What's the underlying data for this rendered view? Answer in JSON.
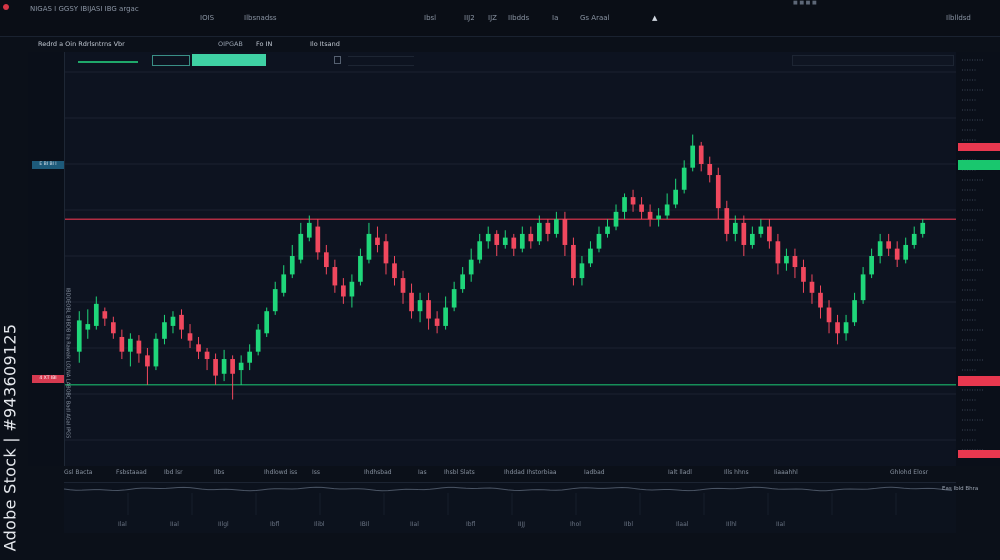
{
  "topbar": {
    "items": [
      "NIGAS I GGSY IBIJASI IBG argac",
      "IOIS",
      "Ilbsnadss",
      "Ibsl",
      "IIJ2",
      "IJZ",
      "IIbdds",
      "Ia",
      "Gs Araal",
      "Ilblldsd"
    ]
  },
  "toolbar": {
    "left_label": "Redrd a Oin  Rdrlsntrns  Vbr",
    "mid_label": "OIPGAB",
    "mid_label2": "Fo  IN",
    "right_label": "Ilo Itsand"
  },
  "watermark": {
    "text": "Adobe Stock | #943609125",
    "side_text": "IBDDEOBL BIIBDB  lla  Rawalk LOLNA LABOBC Badl  AGaI  IPGS"
  },
  "price_markers": {
    "upper_left": "E BI BI I",
    "lower_left": "4 XT IBI"
  },
  "x_axis_labels": [
    "Gsl Bacta",
    "Fsbstaaad",
    "Ibd lsr",
    "Ilbs",
    "Ihdlowd iss",
    "Iss",
    "Ihdhsbad",
    "Ias",
    "Ihsbl Slats",
    "Ihddad Ihstorbiaa",
    "Iadbad",
    "Ialt lladl",
    "Ills hhns",
    "Iiaaahhl",
    "Ghlohd Elosr"
  ],
  "bottom_labels": [
    "Ilal",
    "IIal",
    "IIlgl",
    "Ibfl",
    "Ilibl",
    "IBIl",
    "IIal",
    "Ibfl",
    "IIJJ",
    "Ihol",
    "IIbl",
    "Ilaal",
    "IIlhl",
    "IIal"
  ],
  "bottom_right_label": "Eas Ibld Bhra",
  "colors": {
    "up": "#1fd67a",
    "down": "#f0485e",
    "hline_red": "#e8384f",
    "hline_green": "#19b86a",
    "accent_teal": "#3fd1a4"
  },
  "chart_data": {
    "type": "candlestick",
    "candles": [
      [
        48,
        65,
        42,
        70
      ],
      [
        60,
        63,
        55,
        71
      ],
      [
        62,
        74,
        60,
        78
      ],
      [
        70,
        66,
        62,
        72
      ],
      [
        64,
        58,
        55,
        67
      ],
      [
        56,
        48,
        44,
        60
      ],
      [
        48,
        55,
        40,
        58
      ],
      [
        54,
        47,
        42,
        57
      ],
      [
        46,
        40,
        30,
        50
      ],
      [
        40,
        55,
        38,
        58
      ],
      [
        55,
        64,
        52,
        68
      ],
      [
        62,
        67,
        58,
        70
      ],
      [
        68,
        60,
        55,
        71
      ],
      [
        58,
        54,
        50,
        63
      ],
      [
        52,
        48,
        44,
        56
      ],
      [
        48,
        44,
        38,
        50
      ],
      [
        44,
        35,
        30,
        47
      ],
      [
        36,
        44,
        32,
        49
      ],
      [
        44,
        36,
        22,
        46
      ],
      [
        38,
        42,
        30,
        46
      ],
      [
        42,
        48,
        38,
        52
      ],
      [
        48,
        60,
        46,
        63
      ],
      [
        58,
        70,
        56,
        72
      ],
      [
        70,
        82,
        68,
        86
      ],
      [
        80,
        90,
        78,
        95
      ],
      [
        90,
        100,
        88,
        106
      ],
      [
        98,
        112,
        96,
        118
      ],
      [
        110,
        118,
        108,
        122
      ],
      [
        116,
        102,
        98,
        120
      ],
      [
        102,
        94,
        90,
        106
      ],
      [
        94,
        84,
        80,
        98
      ],
      [
        84,
        78,
        74,
        88
      ],
      [
        78,
        86,
        72,
        90
      ],
      [
        86,
        100,
        84,
        104
      ],
      [
        98,
        112,
        96,
        118
      ],
      [
        110,
        106,
        102,
        116
      ],
      [
        108,
        96,
        90,
        112
      ],
      [
        96,
        88,
        84,
        100
      ],
      [
        88,
        80,
        74,
        92
      ],
      [
        80,
        70,
        66,
        85
      ],
      [
        70,
        76,
        64,
        80
      ],
      [
        76,
        66,
        60,
        80
      ],
      [
        66,
        62,
        58,
        70
      ],
      [
        62,
        72,
        60,
        78
      ],
      [
        72,
        82,
        70,
        86
      ],
      [
        82,
        90,
        80,
        94
      ],
      [
        90,
        98,
        86,
        104
      ],
      [
        98,
        108,
        96,
        112
      ],
      [
        108,
        112,
        104,
        116
      ],
      [
        112,
        106,
        100,
        114
      ],
      [
        106,
        110,
        104,
        114
      ],
      [
        110,
        104,
        100,
        112
      ],
      [
        104,
        112,
        102,
        116
      ],
      [
        112,
        108,
        104,
        116
      ],
      [
        108,
        118,
        106,
        122
      ],
      [
        118,
        112,
        108,
        120
      ],
      [
        112,
        120,
        110,
        124
      ],
      [
        120,
        106,
        100,
        124
      ],
      [
        106,
        88,
        84,
        110
      ],
      [
        88,
        96,
        84,
        100
      ],
      [
        96,
        104,
        94,
        108
      ],
      [
        104,
        112,
        102,
        116
      ],
      [
        112,
        116,
        110,
        120
      ],
      [
        116,
        124,
        114,
        128
      ],
      [
        124,
        132,
        120,
        134
      ],
      [
        132,
        128,
        124,
        136
      ],
      [
        128,
        124,
        120,
        132
      ],
      [
        124,
        120,
        116,
        128
      ],
      [
        120,
        122,
        116,
        126
      ],
      [
        122,
        128,
        120,
        134
      ],
      [
        128,
        136,
        126,
        142
      ],
      [
        136,
        148,
        134,
        152
      ],
      [
        148,
        160,
        146,
        166
      ],
      [
        160,
        150,
        146,
        162
      ],
      [
        150,
        144,
        140,
        154
      ],
      [
        144,
        126,
        120,
        148
      ],
      [
        126,
        112,
        108,
        130
      ],
      [
        112,
        118,
        108,
        122
      ],
      [
        118,
        106,
        100,
        122
      ],
      [
        106,
        112,
        104,
        116
      ],
      [
        112,
        116,
        110,
        120
      ],
      [
        116,
        108,
        104,
        120
      ],
      [
        108,
        96,
        90,
        112
      ],
      [
        96,
        100,
        92,
        104
      ],
      [
        100,
        94,
        88,
        104
      ],
      [
        94,
        86,
        80,
        98
      ],
      [
        86,
        80,
        74,
        90
      ],
      [
        80,
        72,
        66,
        84
      ],
      [
        72,
        64,
        58,
        76
      ],
      [
        64,
        58,
        52,
        68
      ],
      [
        58,
        64,
        54,
        68
      ],
      [
        64,
        76,
        62,
        80
      ],
      [
        76,
        90,
        74,
        94
      ],
      [
        90,
        100,
        88,
        104
      ],
      [
        100,
        108,
        96,
        112
      ],
      [
        108,
        104,
        100,
        112
      ],
      [
        104,
        98,
        94,
        108
      ],
      [
        98,
        106,
        96,
        110
      ],
      [
        106,
        112,
        104,
        116
      ],
      [
        112,
        118,
        110,
        120
      ]
    ],
    "ylim": [
      0,
      200
    ],
    "hlines": [
      {
        "value": 120,
        "color": "red"
      },
      {
        "value": 30,
        "color": "green"
      }
    ]
  }
}
